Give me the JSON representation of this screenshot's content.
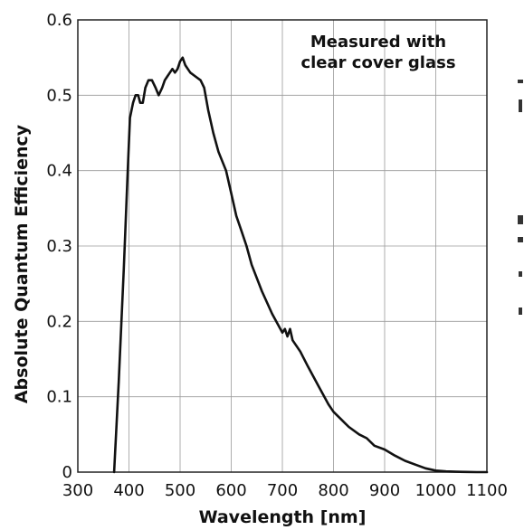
{
  "chart_data": {
    "type": "line",
    "xlabel": "Wavelength [nm]",
    "ylabel": "Absolute Quantum Efficiency",
    "annotation": [
      "Measured with",
      "clear cover glass"
    ],
    "xlim": [
      300,
      1100
    ],
    "ylim": [
      0,
      0.6
    ],
    "xticks": [
      300,
      400,
      500,
      600,
      700,
      800,
      900,
      1000,
      1100
    ],
    "xtick_labels": [
      "300",
      "400",
      "500",
      "600",
      "700",
      "800",
      "900",
      "1000",
      "1100"
    ],
    "yticks": [
      0,
      0.1,
      0.2,
      0.3,
      0.4,
      0.5,
      0.6
    ],
    "ytick_labels": [
      "0",
      "0.1",
      "0.2",
      "0.3",
      "0.4",
      "0.5",
      "0.6"
    ],
    "grid": true,
    "series": [
      {
        "x": [
          371,
          380,
          390,
          397,
          402,
          408,
          413,
          418,
          422,
          427,
          432,
          438,
          445,
          452,
          458,
          465,
          470,
          475,
          480,
          485,
          490,
          495,
          500,
          505,
          510,
          515,
          520,
          530,
          540,
          547,
          555,
          565,
          575,
          590,
          600,
          610,
          620,
          630,
          640,
          660,
          680,
          700,
          705,
          710,
          715,
          720,
          725,
          735,
          750,
          770,
          790,
          800,
          815,
          830,
          850,
          865,
          880,
          900,
          920,
          940,
          960,
          980,
          1000,
          1020,
          1040,
          1060,
          1080,
          1100
        ],
        "y": [
          0.0,
          0.12,
          0.27,
          0.39,
          0.47,
          0.49,
          0.5,
          0.5,
          0.49,
          0.49,
          0.51,
          0.52,
          0.52,
          0.51,
          0.5,
          0.51,
          0.52,
          0.525,
          0.53,
          0.535,
          0.53,
          0.535,
          0.545,
          0.55,
          0.54,
          0.535,
          0.53,
          0.525,
          0.52,
          0.51,
          0.48,
          0.45,
          0.425,
          0.4,
          0.37,
          0.34,
          0.32,
          0.3,
          0.275,
          0.24,
          0.21,
          0.185,
          0.19,
          0.18,
          0.19,
          0.175,
          0.17,
          0.16,
          0.14,
          0.115,
          0.09,
          0.08,
          0.07,
          0.06,
          0.05,
          0.045,
          0.035,
          0.03,
          0.022,
          0.015,
          0.01,
          0.005,
          0.002,
          0.001,
          0.0005,
          0.0002,
          0.0,
          0.0
        ]
      }
    ]
  }
}
